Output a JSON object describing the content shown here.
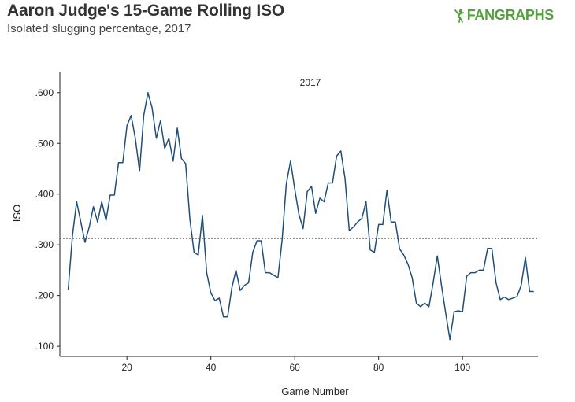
{
  "header": {
    "title": "Aaron Judge's 15-Game Rolling ISO",
    "subtitle": "Isolated slugging percentage, 2017",
    "logo_text": "FANGRAPHS",
    "logo_icon": "batter-icon",
    "logo_color": "#52a13b"
  },
  "chart_data": {
    "type": "line",
    "title": "Aaron Judge's 15-Game Rolling ISO",
    "subtitle": "Isolated slugging percentage, 2017",
    "facet_label": "2017",
    "xlabel": "Game Number",
    "ylabel": "ISO",
    "xlim": [
      4,
      118
    ],
    "ylim": [
      0.08,
      0.64
    ],
    "xticks": [
      20,
      40,
      60,
      80,
      100
    ],
    "xtick_labels": [
      "20",
      "40",
      "60",
      "80",
      "100"
    ],
    "yticks": [
      0.1,
      0.2,
      0.3,
      0.4,
      0.5,
      0.6
    ],
    "ytick_labels": [
      ".100",
      ".200",
      ".300",
      ".400",
      ".500",
      ".600"
    ],
    "reference_line": {
      "y": 0.313,
      "style": "dotted"
    },
    "line_color": "#1f4e79",
    "series": [
      {
        "name": "Rolling ISO",
        "x": [
          6,
          7,
          8,
          9,
          10,
          11,
          12,
          13,
          14,
          15,
          16,
          17,
          18,
          19,
          20,
          21,
          22,
          23,
          24,
          25,
          26,
          27,
          28,
          29,
          30,
          31,
          32,
          33,
          34,
          35,
          36,
          37,
          38,
          39,
          40,
          41,
          42,
          43,
          44,
          45,
          46,
          47,
          48,
          49,
          50,
          51,
          52,
          53,
          54,
          55,
          56,
          57,
          58,
          59,
          60,
          61,
          62,
          63,
          64,
          65,
          66,
          67,
          68,
          69,
          70,
          71,
          72,
          73,
          74,
          75,
          76,
          77,
          78,
          79,
          80,
          81,
          82,
          83,
          84,
          85,
          86,
          87,
          88,
          89,
          90,
          91,
          92,
          93,
          94,
          95,
          96,
          97,
          98,
          99,
          100,
          101,
          102,
          103,
          104,
          105,
          106,
          107,
          108,
          109,
          110,
          111,
          112,
          113,
          114,
          115,
          116,
          117
        ],
        "values": [
          0.212,
          0.318,
          0.385,
          0.345,
          0.305,
          0.335,
          0.375,
          0.345,
          0.385,
          0.348,
          0.398,
          0.398,
          0.462,
          0.462,
          0.535,
          0.555,
          0.51,
          0.445,
          0.555,
          0.6,
          0.57,
          0.51,
          0.545,
          0.49,
          0.51,
          0.465,
          0.53,
          0.47,
          0.46,
          0.35,
          0.285,
          0.28,
          0.358,
          0.245,
          0.205,
          0.19,
          0.195,
          0.158,
          0.158,
          0.215,
          0.25,
          0.21,
          0.22,
          0.225,
          0.285,
          0.308,
          0.308,
          0.245,
          0.245,
          0.24,
          0.235,
          0.31,
          0.42,
          0.465,
          0.41,
          0.36,
          0.332,
          0.405,
          0.415,
          0.362,
          0.392,
          0.385,
          0.422,
          0.422,
          0.475,
          0.485,
          0.43,
          0.328,
          0.335,
          0.345,
          0.352,
          0.385,
          0.29,
          0.285,
          0.34,
          0.34,
          0.408,
          0.345,
          0.345,
          0.292,
          0.28,
          0.262,
          0.235,
          0.185,
          0.178,
          0.185,
          0.178,
          0.225,
          0.278,
          0.22,
          0.165,
          0.113,
          0.168,
          0.17,
          0.168,
          0.238,
          0.245,
          0.245,
          0.25,
          0.25,
          0.293,
          0.293,
          0.225,
          0.192,
          0.197,
          0.192,
          0.195,
          0.198,
          0.22,
          0.275,
          0.208,
          0.208
        ]
      }
    ]
  }
}
